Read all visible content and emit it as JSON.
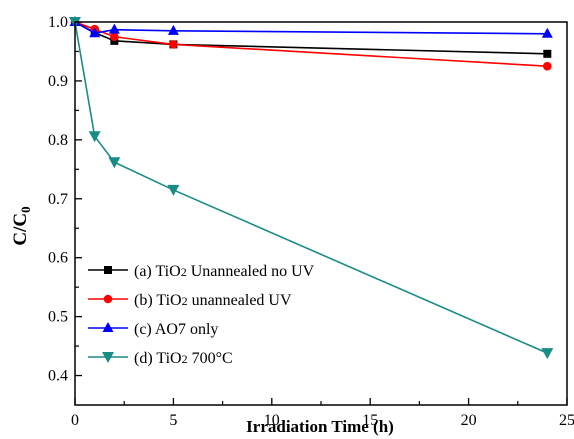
{
  "chart_data": {
    "type": "line",
    "title": "",
    "xlabel": "Irradiation Time (h)",
    "ylabel": {
      "main": "C/C",
      "sub": "0"
    },
    "xlim": [
      0,
      25
    ],
    "ylim": [
      0.35,
      1.0
    ],
    "xticks": [
      0,
      5,
      10,
      15,
      20,
      25
    ],
    "yticks": [
      0.4,
      0.5,
      0.6,
      0.7,
      0.8,
      0.9,
      1.0
    ],
    "xtick_labels": [
      "0",
      "5",
      "10",
      "15",
      "20",
      "25"
    ],
    "ytick_labels": [
      "0.4",
      "0.5",
      "0.6",
      "0.7",
      "0.8",
      "0.9",
      "1.0"
    ],
    "grid": false,
    "legend_position": "bottom-left",
    "series": [
      {
        "name": "(a) TiO2 Unannealed no UV",
        "legend_parts": {
          "prefix": "(a) TiO",
          "sub": "2",
          "suffix": " Unannealed no UV"
        },
        "color": "#000000",
        "marker": "square",
        "x": [
          0,
          1,
          2,
          5,
          24
        ],
        "y": [
          1.0,
          0.982,
          0.968,
          0.962,
          0.946
        ]
      },
      {
        "name": "(b) TiO2 unannealed UV",
        "legend_parts": {
          "prefix": "(b) TiO",
          "sub": "2",
          "suffix": " unannealed UV"
        },
        "color": "#ff0000",
        "marker": "circle",
        "x": [
          0,
          1,
          2,
          5,
          24
        ],
        "y": [
          1.0,
          0.988,
          0.975,
          0.962,
          0.925
        ]
      },
      {
        "name": "(c) AO7 only",
        "legend_parts": {
          "prefix": "(c) AO7 only",
          "sub": "",
          "suffix": ""
        },
        "color": "#0000ff",
        "marker": "triangle-up",
        "x": [
          0,
          1,
          2,
          5,
          24
        ],
        "y": [
          1.0,
          0.981,
          0.987,
          0.985,
          0.98
        ]
      },
      {
        "name": "(d) TiO2 700°C",
        "legend_parts": {
          "prefix": "(d) TiO",
          "sub": "2",
          "suffix": " 700°C"
        },
        "color": "#1a8c86",
        "marker": "triangle-down",
        "x": [
          0,
          1,
          2,
          5,
          24
        ],
        "y": [
          1.0,
          0.806,
          0.762,
          0.715,
          0.438
        ]
      }
    ]
  }
}
